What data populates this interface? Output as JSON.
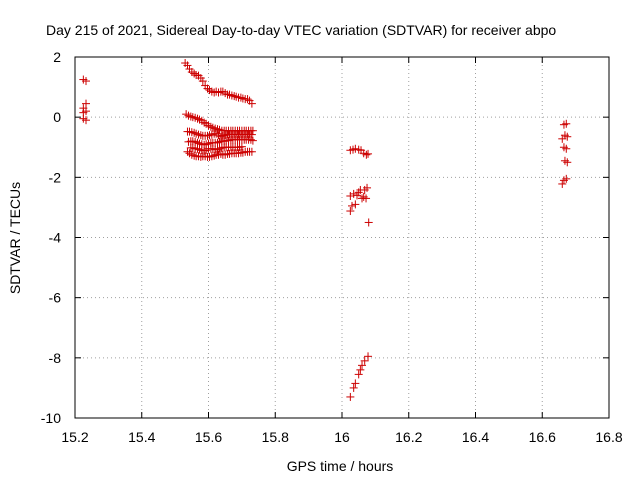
{
  "chart_data": {
    "type": "scatter",
    "title": "Day 215 of 2021, Sidereal Day-to-day VTEC variation (SDTVAR) for receiver abpo",
    "xlabel": "GPS time / hours",
    "ylabel": "SDTVAR / TECUs",
    "xlim": [
      15.2,
      16.8
    ],
    "ylim": [
      -10,
      2
    ],
    "xticks": [
      "15.2",
      "15.4",
      "15.6",
      "15.8",
      "16",
      "16.2",
      "16.4",
      "16.6",
      "16.8"
    ],
    "yticks": [
      "2",
      "0",
      "-2",
      "-4",
      "-6",
      "-8",
      "-10"
    ],
    "grid": true,
    "marker_color": "#cc0000",
    "marker": "+",
    "series": [
      {
        "name": "SDTVAR",
        "points": [
          [
            15.225,
            1.25
          ],
          [
            15.233,
            1.2
          ],
          [
            15.225,
            0.3
          ],
          [
            15.233,
            0.45
          ],
          [
            15.225,
            0.15
          ],
          [
            15.233,
            0.2
          ],
          [
            15.225,
            -0.05
          ],
          [
            15.233,
            -0.1
          ],
          [
            15.53,
            1.8
          ],
          [
            15.537,
            1.72
          ],
          [
            15.543,
            1.6
          ],
          [
            15.55,
            1.5
          ],
          [
            15.557,
            1.45
          ],
          [
            15.563,
            1.4
          ],
          [
            15.57,
            1.38
          ],
          [
            15.577,
            1.3
          ],
          [
            15.583,
            1.2
          ],
          [
            15.59,
            1.05
          ],
          [
            15.597,
            0.95
          ],
          [
            15.603,
            0.9
          ],
          [
            15.61,
            0.85
          ],
          [
            15.617,
            0.82
          ],
          [
            15.623,
            0.85
          ],
          [
            15.63,
            0.82
          ],
          [
            15.637,
            0.85
          ],
          [
            15.643,
            0.85
          ],
          [
            15.65,
            0.8
          ],
          [
            15.657,
            0.75
          ],
          [
            15.663,
            0.75
          ],
          [
            15.67,
            0.72
          ],
          [
            15.677,
            0.7
          ],
          [
            15.683,
            0.68
          ],
          [
            15.69,
            0.65
          ],
          [
            15.697,
            0.65
          ],
          [
            15.703,
            0.62
          ],
          [
            15.71,
            0.6
          ],
          [
            15.717,
            0.6
          ],
          [
            15.723,
            0.55
          ],
          [
            15.73,
            0.45
          ],
          [
            15.533,
            0.1
          ],
          [
            15.54,
            0.05
          ],
          [
            15.547,
            0.02
          ],
          [
            15.553,
            0.0
          ],
          [
            15.56,
            -0.02
          ],
          [
            15.567,
            -0.05
          ],
          [
            15.573,
            -0.08
          ],
          [
            15.58,
            -0.12
          ],
          [
            15.587,
            -0.18
          ],
          [
            15.593,
            -0.22
          ],
          [
            15.6,
            -0.28
          ],
          [
            15.607,
            -0.32
          ],
          [
            15.613,
            -0.35
          ],
          [
            15.62,
            -0.38
          ],
          [
            15.627,
            -0.4
          ],
          [
            15.633,
            -0.42
          ],
          [
            15.64,
            -0.45
          ],
          [
            15.647,
            -0.45
          ],
          [
            15.653,
            -0.45
          ],
          [
            15.66,
            -0.45
          ],
          [
            15.667,
            -0.45
          ],
          [
            15.673,
            -0.45
          ],
          [
            15.68,
            -0.45
          ],
          [
            15.687,
            -0.45
          ],
          [
            15.693,
            -0.45
          ],
          [
            15.7,
            -0.45
          ],
          [
            15.707,
            -0.45
          ],
          [
            15.713,
            -0.45
          ],
          [
            15.72,
            -0.45
          ],
          [
            15.727,
            -0.45
          ],
          [
            15.733,
            -0.45
          ],
          [
            15.537,
            -0.48
          ],
          [
            15.543,
            -0.48
          ],
          [
            15.55,
            -0.5
          ],
          [
            15.557,
            -0.52
          ],
          [
            15.563,
            -0.55
          ],
          [
            15.57,
            -0.58
          ],
          [
            15.577,
            -0.6
          ],
          [
            15.583,
            -0.62
          ],
          [
            15.59,
            -0.62
          ],
          [
            15.597,
            -0.62
          ],
          [
            15.603,
            -0.6
          ],
          [
            15.61,
            -0.58
          ],
          [
            15.617,
            -0.55
          ],
          [
            15.623,
            -0.55
          ],
          [
            15.63,
            -0.6
          ],
          [
            15.637,
            -0.65
          ],
          [
            15.643,
            -0.62
          ],
          [
            15.65,
            -0.6
          ],
          [
            15.657,
            -0.58
          ],
          [
            15.663,
            -0.58
          ],
          [
            15.67,
            -0.58
          ],
          [
            15.677,
            -0.58
          ],
          [
            15.683,
            -0.58
          ],
          [
            15.69,
            -0.58
          ],
          [
            15.697,
            -0.58
          ],
          [
            15.703,
            -0.58
          ],
          [
            15.71,
            -0.58
          ],
          [
            15.717,
            -0.58
          ],
          [
            15.723,
            -0.58
          ],
          [
            15.73,
            -0.58
          ],
          [
            15.54,
            -0.82
          ],
          [
            15.547,
            -0.8
          ],
          [
            15.553,
            -0.8
          ],
          [
            15.56,
            -0.82
          ],
          [
            15.567,
            -0.85
          ],
          [
            15.573,
            -0.88
          ],
          [
            15.58,
            -0.9
          ],
          [
            15.587,
            -0.92
          ],
          [
            15.593,
            -0.9
          ],
          [
            15.6,
            -0.88
          ],
          [
            15.607,
            -0.85
          ],
          [
            15.613,
            -0.85
          ],
          [
            15.62,
            -0.85
          ],
          [
            15.627,
            -0.85
          ],
          [
            15.633,
            -0.82
          ],
          [
            15.64,
            -0.8
          ],
          [
            15.647,
            -0.8
          ],
          [
            15.653,
            -0.78
          ],
          [
            15.66,
            -0.78
          ],
          [
            15.667,
            -0.75
          ],
          [
            15.673,
            -0.75
          ],
          [
            15.68,
            -0.75
          ],
          [
            15.687,
            -0.75
          ],
          [
            15.693,
            -0.75
          ],
          [
            15.7,
            -0.75
          ],
          [
            15.707,
            -0.75
          ],
          [
            15.713,
            -0.75
          ],
          [
            15.72,
            -0.75
          ],
          [
            15.727,
            -0.75
          ],
          [
            15.733,
            -0.78
          ],
          [
            15.547,
            -1.02
          ],
          [
            15.553,
            -1.02
          ],
          [
            15.56,
            -1.05
          ],
          [
            15.567,
            -1.05
          ],
          [
            15.573,
            -1.08
          ],
          [
            15.58,
            -1.1
          ],
          [
            15.587,
            -1.12
          ],
          [
            15.593,
            -1.1
          ],
          [
            15.6,
            -1.05
          ],
          [
            15.607,
            -1.05
          ],
          [
            15.613,
            -1.05
          ],
          [
            15.62,
            -1.08
          ],
          [
            15.627,
            -1.08
          ],
          [
            15.633,
            -1.05
          ],
          [
            15.64,
            -1.02
          ],
          [
            15.647,
            -1.0
          ],
          [
            15.653,
            -1.0
          ],
          [
            15.66,
            -1.0
          ],
          [
            15.667,
            -1.0
          ],
          [
            15.673,
            -1.0
          ],
          [
            15.68,
            -1.0
          ],
          [
            15.687,
            -1.0
          ],
          [
            15.693,
            -1.0
          ],
          [
            15.7,
            -0.98
          ],
          [
            15.537,
            -1.15
          ],
          [
            15.543,
            -1.2
          ],
          [
            15.55,
            -1.25
          ],
          [
            15.557,
            -1.28
          ],
          [
            15.563,
            -1.3
          ],
          [
            15.57,
            -1.3
          ],
          [
            15.577,
            -1.32
          ],
          [
            15.583,
            -1.3
          ],
          [
            15.59,
            -1.3
          ],
          [
            15.597,
            -1.32
          ],
          [
            15.603,
            -1.32
          ],
          [
            15.61,
            -1.3
          ],
          [
            15.617,
            -1.28
          ],
          [
            15.623,
            -1.25
          ],
          [
            15.63,
            -1.25
          ],
          [
            15.637,
            -1.22
          ],
          [
            15.643,
            -1.25
          ],
          [
            15.65,
            -1.25
          ],
          [
            15.657,
            -1.22
          ],
          [
            15.663,
            -1.22
          ],
          [
            15.67,
            -1.2
          ],
          [
            15.677,
            -1.2
          ],
          [
            15.683,
            -1.2
          ],
          [
            15.69,
            -1.2
          ],
          [
            15.697,
            -1.18
          ],
          [
            15.703,
            -1.18
          ],
          [
            15.71,
            -1.15
          ],
          [
            15.717,
            -1.15
          ],
          [
            15.723,
            -1.15
          ],
          [
            15.73,
            -1.15
          ],
          [
            16.025,
            -1.1
          ],
          [
            16.033,
            -1.08
          ],
          [
            16.04,
            -1.05
          ],
          [
            16.05,
            -1.08
          ],
          [
            16.057,
            -1.1
          ],
          [
            16.065,
            -1.2
          ],
          [
            16.073,
            -1.25
          ],
          [
            16.078,
            -1.22
          ],
          [
            16.025,
            -3.12
          ],
          [
            16.03,
            -2.95
          ],
          [
            16.025,
            -2.62
          ],
          [
            16.035,
            -2.55
          ],
          [
            16.04,
            -2.9
          ],
          [
            16.045,
            -2.6
          ],
          [
            16.05,
            -2.5
          ],
          [
            16.055,
            -2.42
          ],
          [
            16.06,
            -2.7
          ],
          [
            16.065,
            -2.65
          ],
          [
            16.068,
            -2.42
          ],
          [
            16.075,
            -2.35
          ],
          [
            16.072,
            -2.7
          ],
          [
            16.08,
            -3.5
          ],
          [
            16.025,
            -9.3
          ],
          [
            16.035,
            -9.0
          ],
          [
            16.04,
            -8.85
          ],
          [
            16.05,
            -8.55
          ],
          [
            16.055,
            -8.4
          ],
          [
            16.06,
            -8.25
          ],
          [
            16.068,
            -8.1
          ],
          [
            16.078,
            -7.95
          ],
          [
            16.665,
            -0.25
          ],
          [
            16.672,
            -0.22
          ],
          [
            16.668,
            -0.6
          ],
          [
            16.675,
            -0.65
          ],
          [
            16.66,
            -0.72
          ],
          [
            16.665,
            -1.0
          ],
          [
            16.672,
            -1.05
          ],
          [
            16.668,
            -1.45
          ],
          [
            16.675,
            -1.5
          ],
          [
            16.665,
            -2.1
          ],
          [
            16.66,
            -2.22
          ],
          [
            16.672,
            -2.05
          ]
        ]
      }
    ]
  }
}
